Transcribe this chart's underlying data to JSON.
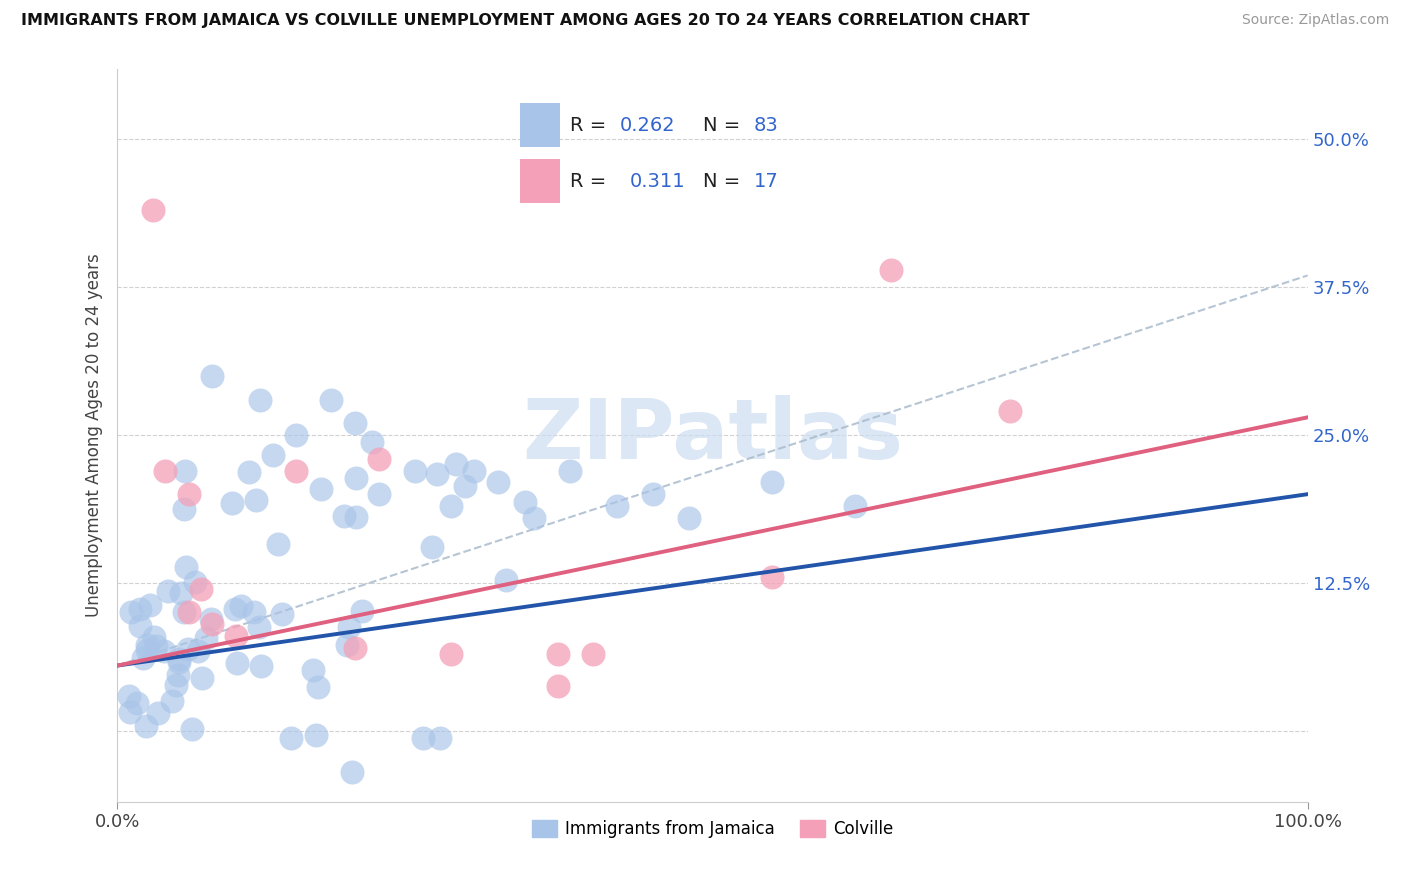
{
  "title": "IMMIGRANTS FROM JAMAICA VS COLVILLE UNEMPLOYMENT AMONG AGES 20 TO 24 YEARS CORRELATION CHART",
  "source": "Source: ZipAtlas.com",
  "ylabel": "Unemployment Among Ages 20 to 24 years",
  "xlim": [
    0.0,
    100.0
  ],
  "ylim": [
    -0.06,
    0.56
  ],
  "ytick_vals": [
    0.0,
    0.125,
    0.25,
    0.375,
    0.5
  ],
  "ytick_labels": [
    "",
    "12.5%",
    "25.0%",
    "37.5%",
    "50.0%"
  ],
  "blue_scatter_color": "#a8c4e8",
  "pink_scatter_color": "#f4a0b8",
  "blue_line_color": "#2255aa",
  "pink_line_color": "#e06080",
  "gray_line_color": "#aabbcc",
  "legend_label_1": "Immigrants from Jamaica",
  "legend_label_2": "Colville",
  "R1": "0.262",
  "N1": "83",
  "R2": "0.311",
  "N2": "17",
  "text_blue": "#3366cc",
  "watermark_color": "#ccddf0",
  "blue_trend": [
    0.055,
    0.2
  ],
  "pink_trend": [
    0.055,
    0.265
  ],
  "gray_trend": [
    0.055,
    0.385
  ]
}
